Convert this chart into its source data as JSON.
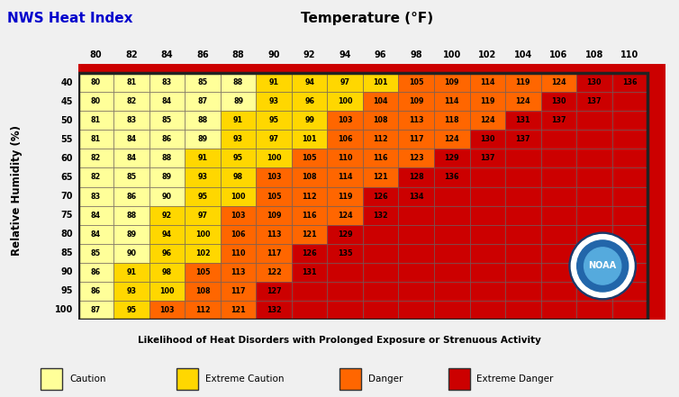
{
  "title_left": "NWS Heat Index",
  "title_center": "Temperature (°F)",
  "xlabel": "Likelihood of Heat Disorders with Prolonged Exposure or Strenuous Activity",
  "ylabel": "Relative Humidity (%)",
  "temps": [
    80,
    82,
    84,
    86,
    88,
    90,
    92,
    94,
    96,
    98,
    100,
    102,
    104,
    106,
    108,
    110
  ],
  "humidities": [
    40,
    45,
    50,
    55,
    60,
    65,
    70,
    75,
    80,
    85,
    90,
    95,
    100
  ],
  "heat_index": [
    [
      80,
      81,
      83,
      85,
      88,
      91,
      94,
      97,
      101,
      105,
      109,
      114,
      119,
      124,
      130,
      136
    ],
    [
      80,
      82,
      84,
      87,
      89,
      93,
      96,
      100,
      104,
      109,
      114,
      119,
      124,
      130,
      137,
      null
    ],
    [
      81,
      83,
      85,
      88,
      91,
      95,
      99,
      103,
      108,
      113,
      118,
      124,
      131,
      137,
      null,
      null
    ],
    [
      81,
      84,
      86,
      89,
      93,
      97,
      101,
      106,
      112,
      117,
      124,
      130,
      137,
      null,
      null,
      null
    ],
    [
      82,
      84,
      88,
      91,
      95,
      100,
      105,
      110,
      116,
      123,
      129,
      137,
      null,
      null,
      null,
      null
    ],
    [
      82,
      85,
      89,
      93,
      98,
      103,
      108,
      114,
      121,
      128,
      136,
      null,
      null,
      null,
      null,
      null
    ],
    [
      83,
      86,
      90,
      95,
      100,
      105,
      112,
      119,
      126,
      134,
      null,
      null,
      null,
      null,
      null,
      null
    ],
    [
      84,
      88,
      92,
      97,
      103,
      109,
      116,
      124,
      132,
      null,
      null,
      null,
      null,
      null,
      null,
      null
    ],
    [
      84,
      89,
      94,
      100,
      106,
      113,
      121,
      129,
      null,
      null,
      null,
      null,
      null,
      null,
      null,
      null
    ],
    [
      85,
      90,
      96,
      102,
      110,
      117,
      126,
      135,
      null,
      null,
      null,
      null,
      null,
      null,
      null,
      null
    ],
    [
      86,
      91,
      98,
      105,
      113,
      122,
      131,
      null,
      null,
      null,
      null,
      null,
      null,
      null,
      null,
      null
    ],
    [
      86,
      93,
      100,
      108,
      117,
      127,
      null,
      null,
      null,
      null,
      null,
      null,
      null,
      null,
      null,
      null
    ],
    [
      87,
      95,
      103,
      112,
      121,
      132,
      null,
      null,
      null,
      null,
      null,
      null,
      null,
      null,
      null,
      null
    ]
  ],
  "caution_color": "#FFFF99",
  "extreme_caution_color": "#FFD700",
  "danger_color": "#FF6600",
  "extreme_danger_color": "#CC0000",
  "fig_bg": "#f0f0f0",
  "border_color": "#222222",
  "legend_items": [
    {
      "label": "Caution",
      "color": "#FFFF99"
    },
    {
      "label": "Extreme Caution",
      "color": "#FFD700"
    },
    {
      "label": "Danger",
      "color": "#FF6600"
    },
    {
      "label": "Extreme Danger",
      "color": "#CC0000"
    }
  ]
}
